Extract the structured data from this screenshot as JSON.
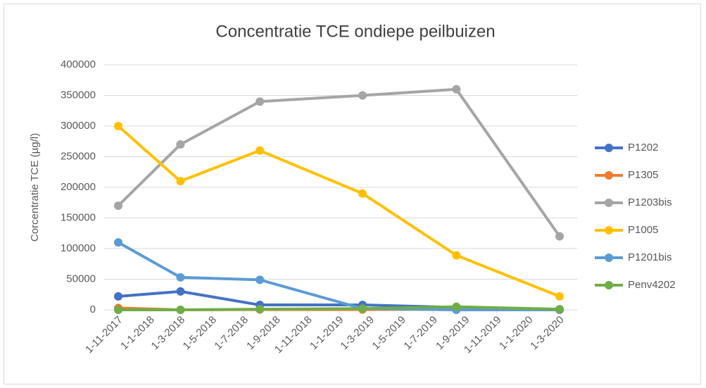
{
  "chart_data": {
    "type": "line",
    "title": "Concentratie TCE ondiepe peilbuizen",
    "y_label": "Corcentratie TCE (µg/l)",
    "x": [
      "2017-11-01",
      "2018-03-01",
      "2018-08-01",
      "2019-02-15",
      "2019-08-15",
      "2020-03-01"
    ],
    "xlim": [
      "2017-11-01",
      "2020-03-01"
    ],
    "xticks": [
      {
        "value": "2017-11-01",
        "label": "1-11-2017"
      },
      {
        "value": "2018-01-01",
        "label": "1-1-2018"
      },
      {
        "value": "2018-03-01",
        "label": "1-3-2018"
      },
      {
        "value": "2018-05-01",
        "label": "1-5-2018"
      },
      {
        "value": "2018-07-01",
        "label": "1-7-2018"
      },
      {
        "value": "2018-09-01",
        "label": "1-9-2018"
      },
      {
        "value": "2018-11-01",
        "label": "1-11-2018"
      },
      {
        "value": "2019-01-01",
        "label": "1-1-2019"
      },
      {
        "value": "2019-03-01",
        "label": "1-3-2019"
      },
      {
        "value": "2019-05-01",
        "label": "1-5-2019"
      },
      {
        "value": "2019-07-01",
        "label": "1-7-2019"
      },
      {
        "value": "2019-09-01",
        "label": "1-9-2019"
      },
      {
        "value": "2019-11-01",
        "label": "1-11-2019"
      },
      {
        "value": "2020-01-01",
        "label": "1-1-2020"
      },
      {
        "value": "2020-03-01",
        "label": "1-3-2020"
      }
    ],
    "ylim": [
      0,
      400000
    ],
    "yticks": [
      0,
      50000,
      100000,
      150000,
      200000,
      250000,
      300000,
      350000,
      400000
    ],
    "grid": true,
    "legend": "right",
    "series": [
      {
        "name": "P1202",
        "color": "#4472c4",
        "values": [
          22000,
          30000,
          8000,
          8000,
          4000,
          500
        ]
      },
      {
        "name": "P1305",
        "color": "#ed7d31",
        "values": [
          3000,
          0,
          500,
          500,
          1000,
          0
        ]
      },
      {
        "name": "P1203bis",
        "color": "#a5a5a5",
        "values": [
          170000,
          270000,
          340000,
          350000,
          360000,
          120000
        ]
      },
      {
        "name": "P1005",
        "color": "#ffc000",
        "values": [
          300000,
          210000,
          260000,
          190000,
          89000,
          22000
        ]
      },
      {
        "name": "P1201bis",
        "color": "#5b9bd5",
        "values": [
          110000,
          53000,
          49000,
          2000,
          0,
          0
        ]
      },
      {
        "name": "Penv4202",
        "color": "#70ad47",
        "values": [
          0,
          0,
          1000,
          2000,
          5000,
          1000
        ]
      }
    ]
  }
}
